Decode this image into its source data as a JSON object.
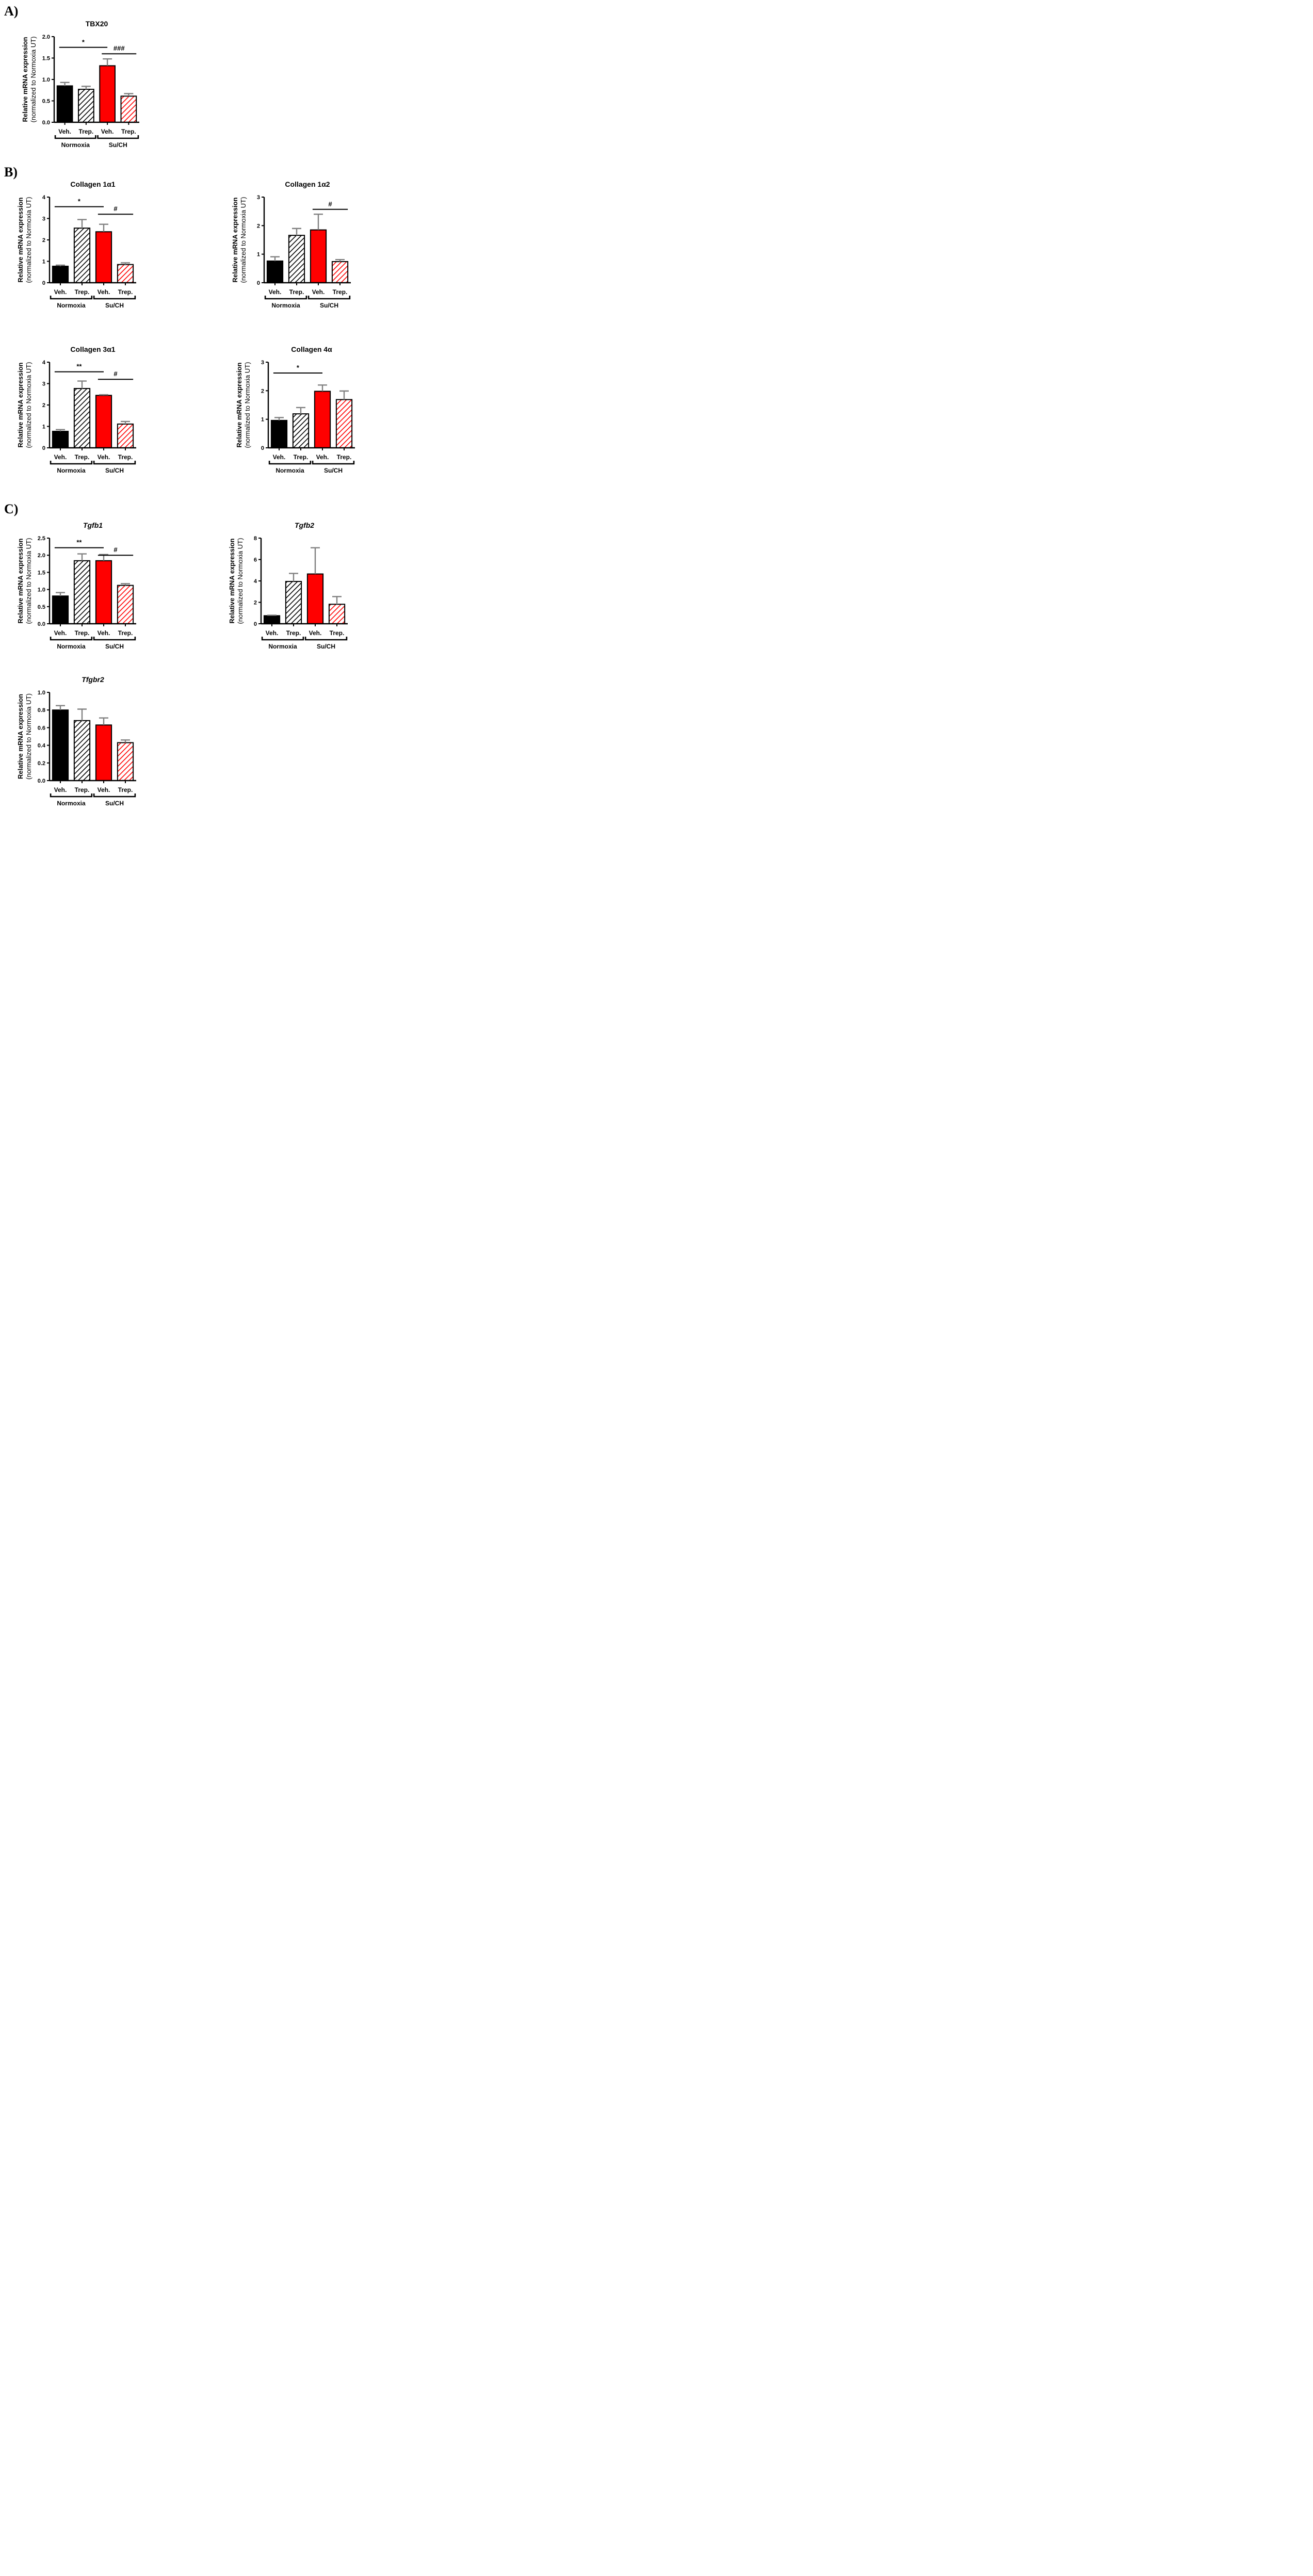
{
  "panels": {
    "a": "A)",
    "b": "B)",
    "c": "C)"
  },
  "colors": {
    "normoxia": "#000000",
    "su_ch": "#ff0000",
    "error_bar": "#808080",
    "axis": "#000000"
  },
  "chart_data": [
    {
      "id": "tbx20",
      "type": "bar",
      "title": "TBX20",
      "title_italic": false,
      "ylabel": "Relative mRNA expression",
      "ylabel2": "(normalized to Normoxia UT)",
      "ylim": [
        0,
        2.0
      ],
      "yticks": [
        "0.0",
        "0.5",
        "1.0",
        "1.5",
        "2.0"
      ],
      "categories": [
        "Veh.",
        "Trep.",
        "Veh.",
        "Trep."
      ],
      "groups": [
        "Normoxia",
        "Su/CH"
      ],
      "values": [
        0.85,
        0.77,
        1.32,
        0.61
      ],
      "errors": [
        0.08,
        0.07,
        0.16,
        0.06
      ],
      "fills": [
        "solid-black",
        "hatch-black",
        "solid-red",
        "hatch-red"
      ],
      "significance": [
        {
          "label": "*",
          "from": 0,
          "to": 2,
          "y": 1.75
        },
        {
          "label": "###",
          "from": 2,
          "to": 3,
          "y": 1.6
        }
      ]
    },
    {
      "id": "col1a1",
      "type": "bar",
      "title": "Collagen 1α1",
      "title_italic": false,
      "ylabel": "Relative mRNA expression",
      "ylabel2": "(normalized to Normoxia UT)",
      "ylim": [
        0,
        4
      ],
      "yticks": [
        "0",
        "1",
        "2",
        "3",
        "4"
      ],
      "categories": [
        "Veh.",
        "Trep.",
        "Veh.",
        "Trep."
      ],
      "groups": [
        "Normoxia",
        "Su/CH"
      ],
      "values": [
        0.77,
        2.55,
        2.38,
        0.85
      ],
      "errors": [
        0.05,
        0.4,
        0.35,
        0.08
      ],
      "fills": [
        "solid-black",
        "hatch-black",
        "solid-red",
        "hatch-red"
      ],
      "significance": [
        {
          "label": "*",
          "from": 0,
          "to": 2,
          "y": 3.55
        },
        {
          "label": "#",
          "from": 2,
          "to": 3,
          "y": 3.2
        }
      ]
    },
    {
      "id": "col1a2",
      "type": "bar",
      "title": "Collagen 1α2",
      "title_italic": false,
      "ylabel": "Relative mRNA expression",
      "ylabel2": "(normalized to Normoxia UT)",
      "ylim": [
        0,
        3
      ],
      "yticks": [
        "0",
        "1",
        "2",
        "3"
      ],
      "categories": [
        "Veh.",
        "Trep.",
        "Veh.",
        "Trep."
      ],
      "groups": [
        "Normoxia",
        "Su/CH"
      ],
      "values": [
        0.76,
        1.66,
        1.85,
        0.74
      ],
      "errors": [
        0.15,
        0.24,
        0.55,
        0.07
      ],
      "fills": [
        "solid-black",
        "hatch-black",
        "solid-red",
        "hatch-red"
      ],
      "significance": [
        {
          "label": "#",
          "from": 2,
          "to": 3,
          "y": 2.57
        }
      ]
    },
    {
      "id": "col3a1",
      "type": "bar",
      "title": "Collagen 3α1",
      "title_italic": false,
      "ylabel": "Relative mRNA expression",
      "ylabel2": "(normalized to Normoxia UT)",
      "ylim": [
        0,
        4
      ],
      "yticks": [
        "0",
        "1",
        "2",
        "3",
        "4"
      ],
      "categories": [
        "Veh.",
        "Trep.",
        "Veh.",
        "Trep."
      ],
      "groups": [
        "Normoxia",
        "Su/CH"
      ],
      "values": [
        0.77,
        2.77,
        2.45,
        1.11
      ],
      "errors": [
        0.08,
        0.35,
        0.03,
        0.12
      ],
      "fills": [
        "solid-black",
        "hatch-black",
        "solid-red",
        "hatch-red"
      ],
      "significance": [
        {
          "label": "**",
          "from": 0,
          "to": 2,
          "y": 3.55
        },
        {
          "label": "#",
          "from": 2,
          "to": 3,
          "y": 3.2
        }
      ]
    },
    {
      "id": "col4a",
      "type": "bar",
      "title": "Collagen 4α",
      "title_italic": false,
      "ylabel": "Relative mRNA expression",
      "ylabel2": "(normalized to Normoxia UT)",
      "ylim": [
        0,
        3
      ],
      "yticks": [
        "0",
        "1",
        "2",
        "3"
      ],
      "categories": [
        "Veh.",
        "Trep.",
        "Veh.",
        "Trep."
      ],
      "groups": [
        "Normoxia",
        "Su/CH"
      ],
      "values": [
        0.96,
        1.19,
        1.98,
        1.69
      ],
      "errors": [
        0.1,
        0.22,
        0.22,
        0.3
      ],
      "fills": [
        "solid-black",
        "hatch-black",
        "solid-red",
        "hatch-red"
      ],
      "significance": [
        {
          "label": "*",
          "from": 0,
          "to": 2,
          "y": 2.62
        }
      ]
    },
    {
      "id": "tgfb1",
      "type": "bar",
      "title": "Tgfb1",
      "title_italic": true,
      "ylabel": "Relative mRNA expression",
      "ylabel2": "(normalized to Normoxia UT)",
      "ylim": [
        0,
        2.5
      ],
      "yticks": [
        "0.0",
        "0.5",
        "1.0",
        "1.5",
        "2.0",
        "2.5"
      ],
      "categories": [
        "Veh.",
        "Trep.",
        "Veh.",
        "Trep."
      ],
      "groups": [
        "Normoxia",
        "Su/CH"
      ],
      "values": [
        0.81,
        1.84,
        1.84,
        1.12
      ],
      "errors": [
        0.1,
        0.2,
        0.18,
        0.05
      ],
      "fills": [
        "solid-black",
        "hatch-black",
        "solid-red",
        "hatch-red"
      ],
      "significance": [
        {
          "label": "**",
          "from": 0,
          "to": 2,
          "y": 2.22
        },
        {
          "label": "#",
          "from": 2,
          "to": 3,
          "y": 2.0
        }
      ]
    },
    {
      "id": "tgfb2",
      "type": "bar",
      "title": "Tgfb2",
      "title_italic": true,
      "ylabel": "Relative mRNA expression",
      "ylabel2": "(normalized to Normoxia UT)",
      "ylim": [
        0,
        8
      ],
      "yticks": [
        "0",
        "2",
        "4",
        "6",
        "8"
      ],
      "categories": [
        "Veh.",
        "Trep.",
        "Veh.",
        "Trep."
      ],
      "groups": [
        "Normoxia",
        "Su/CH"
      ],
      "values": [
        0.75,
        3.95,
        4.65,
        1.82
      ],
      "errors": [
        0.05,
        0.75,
        2.45,
        0.72
      ],
      "fills": [
        "solid-black",
        "hatch-black",
        "solid-red",
        "hatch-red"
      ],
      "significance": []
    },
    {
      "id": "tfgbr2",
      "type": "bar",
      "title": "Tfgbr2",
      "title_italic": true,
      "ylabel": "Relative mRNA expression",
      "ylabel2": "(normalized to Normoxia UT)",
      "ylim": [
        0,
        1.0
      ],
      "yticks": [
        "0.0",
        "0.2",
        "0.4",
        "0.6",
        "0.8",
        "1.0"
      ],
      "categories": [
        "Veh.",
        "Trep.",
        "Veh.",
        "Trep."
      ],
      "groups": [
        "Normoxia",
        "Su/CH"
      ],
      "values": [
        0.8,
        0.68,
        0.63,
        0.43
      ],
      "errors": [
        0.05,
        0.13,
        0.08,
        0.03
      ],
      "fills": [
        "solid-black",
        "hatch-black",
        "solid-red",
        "hatch-red"
      ],
      "significance": []
    }
  ]
}
